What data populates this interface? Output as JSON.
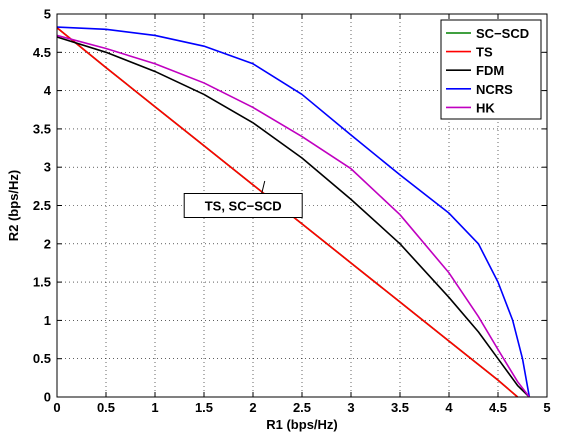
{
  "chart_data": {
    "type": "line",
    "title": "",
    "xlabel": "R1 (bps/Hz)",
    "ylabel": "R2 (bps/Hz)",
    "xlim": [
      0,
      5
    ],
    "ylim": [
      0,
      5
    ],
    "xticks": [
      "0",
      "0.5",
      "1",
      "1.5",
      "2",
      "2.5",
      "3",
      "3.5",
      "4",
      "4.5",
      "5"
    ],
    "yticks": [
      "0",
      "0.5",
      "1",
      "1.5",
      "2",
      "2.5",
      "3",
      "3.5",
      "4",
      "4.5",
      "5"
    ],
    "grid": true,
    "legend_position": "top-right",
    "annotation": {
      "text": "TS, SC−SCD",
      "target": [
        2.12,
        2.82
      ],
      "label_at": [
        1.9,
        2.5
      ]
    },
    "series": [
      {
        "name": "SC−SCD",
        "color": "#008000",
        "x": [
          0,
          0.5,
          1,
          1.5,
          2,
          2.5,
          3,
          3.5,
          4,
          4.5,
          4.7
        ],
        "y": [
          4.82,
          4.3,
          3.79,
          3.28,
          2.77,
          2.26,
          1.75,
          1.24,
          0.73,
          0.22,
          0
        ]
      },
      {
        "name": "TS",
        "color": "#ff0000",
        "x": [
          0,
          0.5,
          1,
          1.5,
          2,
          2.5,
          3,
          3.5,
          4,
          4.5,
          4.7
        ],
        "y": [
          4.82,
          4.3,
          3.79,
          3.28,
          2.77,
          2.26,
          1.75,
          1.24,
          0.73,
          0.22,
          0
        ]
      },
      {
        "name": "FDM",
        "color": "#000000",
        "x": [
          0,
          0.5,
          1,
          1.5,
          2,
          2.5,
          3,
          3.5,
          4,
          4.3,
          4.5,
          4.7,
          4.82
        ],
        "y": [
          4.7,
          4.5,
          4.25,
          3.95,
          3.58,
          3.12,
          2.58,
          2.0,
          1.3,
          0.85,
          0.5,
          0.15,
          0
        ]
      },
      {
        "name": "NCRS",
        "color": "#0000ff",
        "x": [
          0,
          0.5,
          1,
          1.5,
          2,
          2.5,
          3,
          3.5,
          4,
          4.3,
          4.5,
          4.65,
          4.75,
          4.82
        ],
        "y": [
          4.83,
          4.8,
          4.72,
          4.58,
          4.35,
          3.95,
          3.42,
          2.9,
          2.4,
          2.0,
          1.5,
          1.0,
          0.5,
          0
        ]
      },
      {
        "name": "HK",
        "color": "#c000c0",
        "x": [
          0,
          0.5,
          1,
          1.5,
          2,
          2.5,
          3,
          3.5,
          4,
          4.3,
          4.5,
          4.7,
          4.82
        ],
        "y": [
          4.72,
          4.55,
          4.35,
          4.1,
          3.78,
          3.4,
          2.98,
          2.38,
          1.62,
          1.05,
          0.62,
          0.2,
          0
        ]
      }
    ],
    "legend_order": [
      "SC−SCD",
      "TS",
      "FDM",
      "NCRS",
      "HK"
    ]
  }
}
